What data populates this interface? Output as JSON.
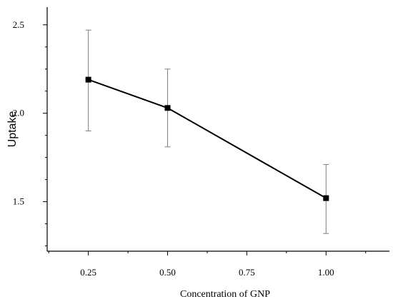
{
  "chart_data": {
    "type": "line",
    "title": "",
    "xlabel": "Concentration of GNP",
    "ylabel": "Uptake",
    "x": [
      0.25,
      0.5,
      0.75,
      1.0
    ],
    "x_tick_labels": [
      "0.25",
      "0.50",
      "0.75",
      "1.00"
    ],
    "y_tick_labels": [
      "1.5",
      "2.0",
      "2.5"
    ],
    "y_ticks": [
      1.5,
      2.0,
      2.5
    ],
    "xlim": [
      0.12,
      1.2
    ],
    "ylim": [
      1.22,
      2.6
    ],
    "grid": false,
    "series": [
      {
        "points": [
          {
            "x": 0.25,
            "y": 2.19,
            "err_low": 1.9,
            "err_high": 2.47
          },
          {
            "x": 0.5,
            "y": 2.03,
            "err_low": 1.81,
            "err_high": 2.25
          },
          {
            "x": 1.0,
            "y": 1.52,
            "err_low": 1.32,
            "err_high": 1.71
          }
        ],
        "color": "#000000",
        "error_bar_color": "#7f7f7f",
        "marker": "square"
      }
    ]
  }
}
